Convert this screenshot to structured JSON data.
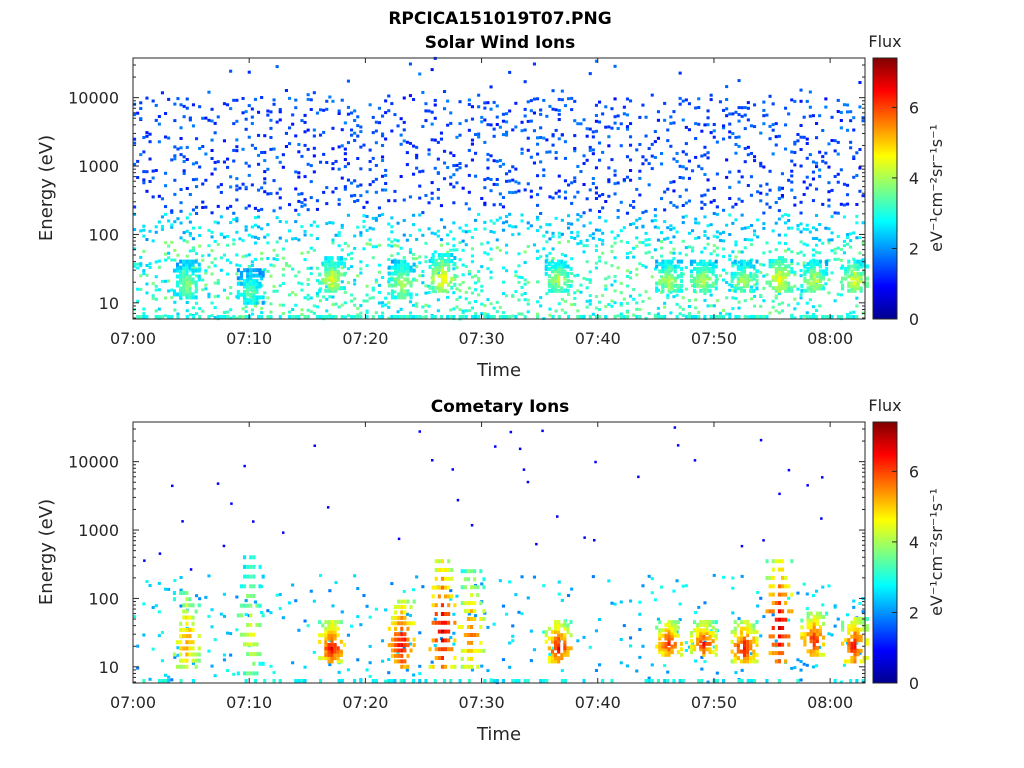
{
  "figure": {
    "title": "RPCICA151019T07.PNG"
  },
  "colorbar": {
    "label": "Flux",
    "unit_text": "eV⁻¹cm⁻²sr⁻¹s⁻¹",
    "ticks": [
      "0",
      "2",
      "4",
      "6"
    ],
    "range": [
      0,
      7.4
    ]
  },
  "chart_data": [
    {
      "type": "heatmap",
      "title": "Solar Wind Ions",
      "xlabel": "Time",
      "ylabel": "Energy (eV)",
      "x_ticks": [
        "07:00",
        "07:10",
        "07:20",
        "07:30",
        "07:40",
        "07:50",
        "08:00"
      ],
      "y_ticks": [
        "10",
        "100",
        "1000",
        "10000"
      ],
      "xlim": [
        "07:00",
        "08:03"
      ],
      "ylim": [
        5.8,
        38000
      ],
      "y_scale": "log",
      "z_label": "Flux",
      "z_range": [
        0,
        7.4
      ],
      "events": [
        {
          "time": "07:04:30",
          "energy": [
            12,
            40
          ],
          "peak_flux": 4.2
        },
        {
          "time": "07:10:00",
          "energy": [
            10,
            30
          ],
          "peak_flux": 3.8
        },
        {
          "time": "07:17:00",
          "energy": [
            15,
            45
          ],
          "peak_flux": 4.8
        },
        {
          "time": "07:23:00",
          "energy": [
            12,
            40
          ],
          "peak_flux": 4.5
        },
        {
          "time": "07:26:30",
          "energy": [
            15,
            50
          ],
          "peak_flux": 5.0
        },
        {
          "time": "07:36:30",
          "energy": [
            15,
            40
          ],
          "peak_flux": 4.6
        },
        {
          "time": "07:46:00",
          "energy": [
            15,
            40
          ],
          "peak_flux": 4.6
        },
        {
          "time": "07:49:00",
          "energy": [
            15,
            40
          ],
          "peak_flux": 4.6
        },
        {
          "time": "07:52:30",
          "energy": [
            15,
            40
          ],
          "peak_flux": 4.4
        },
        {
          "time": "07:55:30",
          "energy": [
            15,
            45
          ],
          "peak_flux": 5.0
        },
        {
          "time": "07:58:30",
          "energy": [
            15,
            40
          ],
          "peak_flux": 4.6
        },
        {
          "time": "08:02:00",
          "energy": [
            15,
            40
          ],
          "peak_flux": 4.8
        }
      ]
    },
    {
      "type": "heatmap",
      "title": "Cometary Ions",
      "xlabel": "Time",
      "ylabel": "Energy (eV)",
      "x_ticks": [
        "07:00",
        "07:10",
        "07:20",
        "07:30",
        "07:40",
        "07:50",
        "08:00"
      ],
      "y_ticks": [
        "10",
        "100",
        "1000",
        "10000"
      ],
      "xlim": [
        "07:00",
        "08:03"
      ],
      "ylim": [
        5.8,
        38000
      ],
      "y_scale": "log",
      "z_label": "Flux",
      "z_range": [
        0,
        7.4
      ],
      "events": [
        {
          "time": "07:04:30",
          "energy": [
            10,
            120
          ],
          "peak_flux": 5.8
        },
        {
          "time": "07:10:00",
          "energy": [
            8,
            400
          ],
          "peak_flux": 4.8
        },
        {
          "time": "07:17:00",
          "energy": [
            12,
            45
          ],
          "peak_flux": 6.8
        },
        {
          "time": "07:23:00",
          "energy": [
            10,
            90
          ],
          "peak_flux": 7.0
        },
        {
          "time": "07:26:30",
          "energy": [
            10,
            350
          ],
          "peak_flux": 7.2
        },
        {
          "time": "07:29:00",
          "energy": [
            10,
            250
          ],
          "peak_flux": 6.0
        },
        {
          "time": "07:36:30",
          "energy": [
            12,
            45
          ],
          "peak_flux": 6.8
        },
        {
          "time": "07:46:00",
          "energy": [
            15,
            45
          ],
          "peak_flux": 6.6
        },
        {
          "time": "07:49:00",
          "energy": [
            15,
            45
          ],
          "peak_flux": 6.6
        },
        {
          "time": "07:52:30",
          "energy": [
            12,
            45
          ],
          "peak_flux": 6.8
        },
        {
          "time": "07:55:30",
          "energy": [
            12,
            350
          ],
          "peak_flux": 7.2
        },
        {
          "time": "07:58:30",
          "energy": [
            15,
            60
          ],
          "peak_flux": 6.6
        },
        {
          "time": "08:02:00",
          "energy": [
            12,
            50
          ],
          "peak_flux": 6.8
        }
      ]
    }
  ]
}
